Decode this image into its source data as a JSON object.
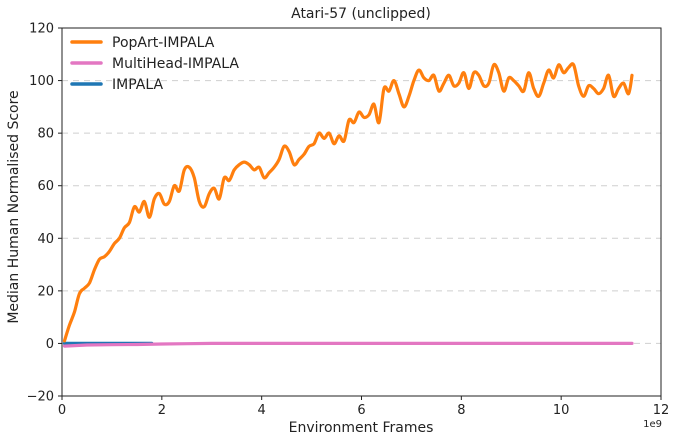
{
  "chart_data": {
    "type": "line",
    "title": "Atari-57 (unclipped)",
    "xlabel": "Environment Frames",
    "ylabel": "Median Human Normalised Score",
    "x_offset_label": "1e9",
    "xlim": [
      0,
      12
    ],
    "ylim": [
      -20,
      120
    ],
    "x_ticks": [
      0,
      2,
      4,
      6,
      8,
      10,
      12
    ],
    "y_ticks": [
      -20,
      0,
      20,
      40,
      60,
      80,
      100,
      120
    ],
    "grid": "horizontal dashed",
    "legend_position": "top-left",
    "series": [
      {
        "name": "PopArt-IMPALA",
        "color": "#ff7f0e",
        "x": [
          0.05,
          0.15,
          0.25,
          0.35,
          0.45,
          0.55,
          0.65,
          0.75,
          0.85,
          0.95,
          1.05,
          1.15,
          1.25,
          1.35,
          1.45,
          1.55,
          1.65,
          1.75,
          1.85,
          1.95,
          2.05,
          2.15,
          2.25,
          2.35,
          2.45,
          2.55,
          2.65,
          2.75,
          2.85,
          2.95,
          3.05,
          3.15,
          3.25,
          3.35,
          3.45,
          3.55,
          3.65,
          3.75,
          3.85,
          3.95,
          4.05,
          4.15,
          4.25,
          4.35,
          4.45,
          4.55,
          4.65,
          4.75,
          4.85,
          4.95,
          5.05,
          5.15,
          5.25,
          5.35,
          5.45,
          5.55,
          5.65,
          5.75,
          5.85,
          5.95,
          6.05,
          6.15,
          6.25,
          6.35,
          6.45,
          6.55,
          6.65,
          6.75,
          6.85,
          6.95,
          7.05,
          7.15,
          7.25,
          7.35,
          7.45,
          7.55,
          7.65,
          7.75,
          7.85,
          7.95,
          8.05,
          8.15,
          8.25,
          8.35,
          8.45,
          8.55,
          8.65,
          8.75,
          8.85,
          8.95,
          9.05,
          9.15,
          9.25,
          9.35,
          9.45,
          9.55,
          9.65,
          9.75,
          9.85,
          9.95,
          10.05,
          10.15,
          10.25,
          10.35,
          10.45,
          10.55,
          10.65,
          10.75,
          10.85,
          10.95,
          11.05,
          11.15,
          11.25,
          11.35,
          11.42
        ],
        "values": [
          1,
          7,
          12,
          19,
          21,
          23,
          28,
          32,
          33,
          35,
          38,
          40,
          44,
          46,
          52,
          50,
          54,
          48,
          55,
          57,
          53,
          54,
          60,
          58,
          66,
          67,
          63,
          54,
          52,
          57,
          59,
          55,
          63,
          62,
          66,
          68,
          69,
          68,
          66,
          67,
          63,
          65,
          67,
          70,
          75,
          73,
          68,
          70,
          72,
          75,
          76,
          80,
          78,
          80,
          76,
          79,
          77,
          85,
          84,
          88,
          86,
          87,
          91,
          84,
          97,
          96,
          100,
          95,
          90,
          94,
          100,
          104,
          101,
          100,
          102,
          96,
          99,
          102,
          98,
          99,
          103,
          97,
          103,
          102,
          98,
          99,
          106,
          103,
          96,
          101,
          100,
          98,
          96,
          103,
          97,
          94,
          99,
          104,
          101,
          106,
          103,
          105,
          106,
          98,
          94,
          98,
          97,
          95,
          97,
          102,
          94,
          97,
          99,
          95,
          102
        ],
        "smooth": true
      },
      {
        "name": "MultiHead-IMPALA",
        "color": "#e377c2",
        "x": [
          0.05,
          0.5,
          1,
          1.5,
          2,
          2.5,
          3,
          3.5,
          4,
          4.5,
          5,
          5.5,
          6,
          6.5,
          7,
          7.5,
          8,
          8.5,
          9,
          9.5,
          10,
          10.5,
          11,
          11.42
        ],
        "values": [
          -1,
          -0.6,
          -0.5,
          -0.4,
          -0.2,
          -0.1,
          0,
          0,
          0,
          0,
          0,
          0,
          0,
          0,
          0,
          0,
          0,
          0,
          0,
          0,
          0,
          0,
          0,
          0
        ]
      },
      {
        "name": "IMPALA",
        "color": "#1f77b4",
        "x": [
          0.05,
          0.3,
          0.6,
          1.0,
          1.4,
          1.8
        ],
        "values": [
          0,
          0,
          0,
          0,
          0,
          0
        ]
      }
    ]
  }
}
